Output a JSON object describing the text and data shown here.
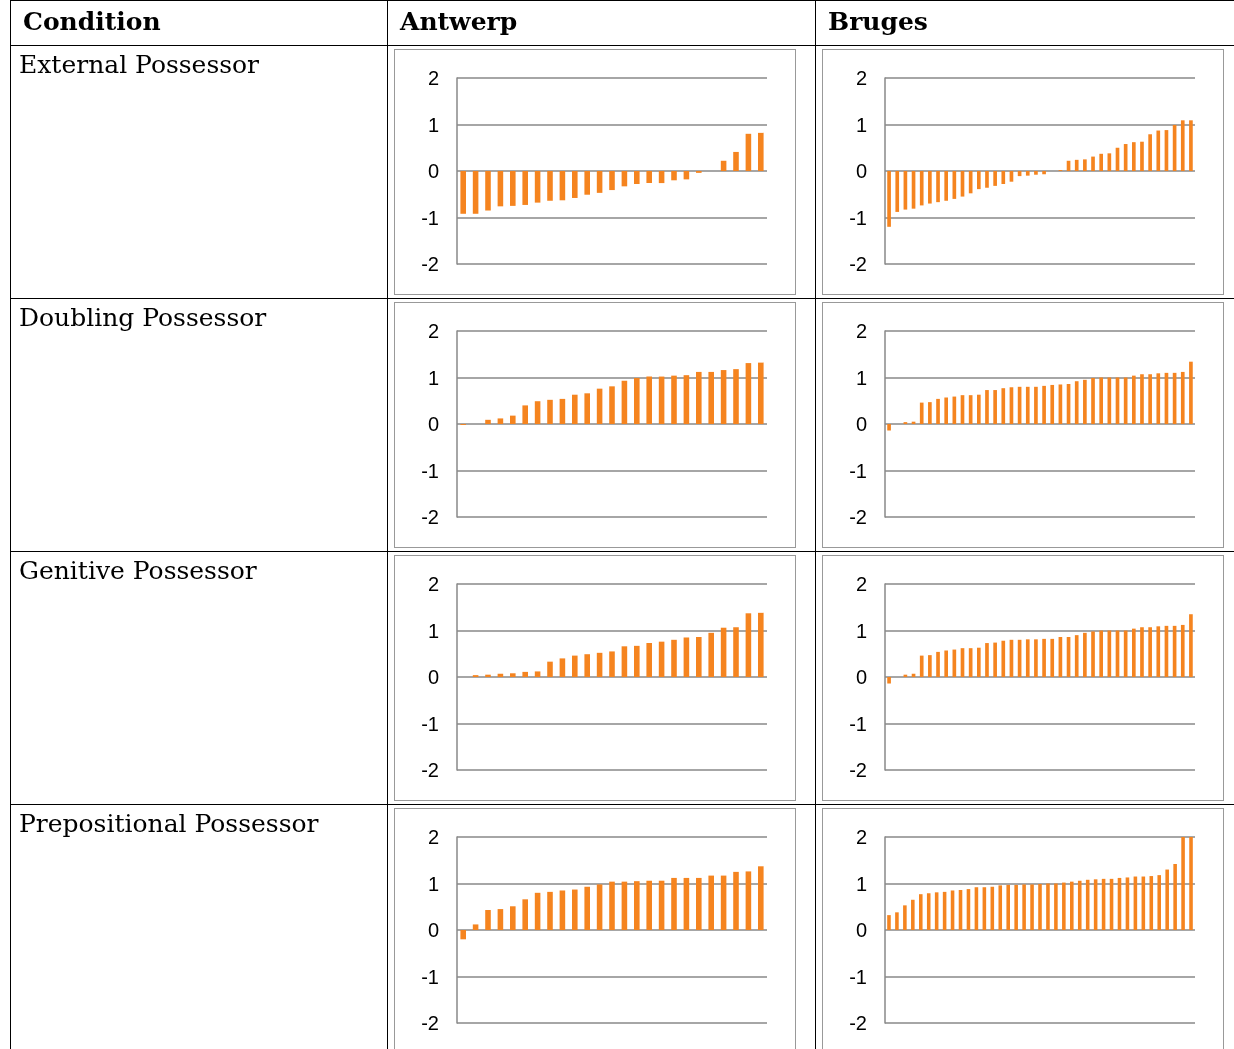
{
  "chart_data": [
    {
      "type": "bar",
      "annotations": [
        "Condition",
        "Antwerp",
        "External Possessor"
      ],
      "categories": [
        null,
        null,
        null,
        null,
        null,
        null,
        null,
        null,
        null,
        null,
        null,
        null,
        null,
        null,
        null,
        null,
        null,
        null,
        null,
        null,
        null,
        null,
        null,
        null,
        null
      ],
      "color": "#f5841f",
      "ylim": [
        -2,
        2
      ],
      "yticks": [
        -2,
        -1,
        0,
        1,
        2
      ],
      "grid": "y",
      "tick_labels": "y",
      "values": [
        -0.92,
        -0.92,
        -0.85,
        -0.76,
        -0.75,
        -0.73,
        -0.68,
        -0.64,
        -0.63,
        -0.58,
        -0.51,
        -0.47,
        -0.41,
        -0.33,
        -0.28,
        -0.26,
        -0.26,
        -0.2,
        -0.18,
        -0.04,
        0,
        0.22,
        0.41,
        0.8,
        0.82
      ]
    },
    {
      "type": "bar",
      "annotations": [
        "Bruges"
      ],
      "categories": [
        null,
        null,
        null,
        null,
        null,
        null,
        null,
        null,
        null,
        null,
        null,
        null,
        null,
        null,
        null,
        null,
        null,
        null,
        null,
        null,
        null,
        null,
        null,
        null,
        null,
        null,
        null,
        null,
        null,
        null,
        null,
        null,
        null,
        null,
        null,
        null,
        null,
        null
      ],
      "color": "#f5841f",
      "ylim": [
        -2,
        2
      ],
      "yticks": [
        -2,
        -1,
        0,
        1,
        2
      ],
      "grid": "y",
      "tick_labels": "y",
      "values": [
        -1.2,
        -0.88,
        -0.83,
        -0.81,
        -0.74,
        -0.7,
        -0.67,
        -0.64,
        -0.6,
        -0.55,
        -0.48,
        -0.39,
        -0.36,
        -0.32,
        -0.28,
        -0.23,
        -0.11,
        -0.1,
        -0.08,
        -0.07,
        0,
        0.02,
        0.22,
        0.24,
        0.25,
        0.31,
        0.37,
        0.38,
        0.5,
        0.58,
        0.62,
        0.63,
        0.79,
        0.87,
        0.88,
        0.99,
        1.09,
        1.09
      ]
    },
    {
      "type": "bar",
      "annotations": [
        "Doubling Possessor"
      ],
      "categories": [
        null,
        null,
        null,
        null,
        null,
        null,
        null,
        null,
        null,
        null,
        null,
        null,
        null,
        null,
        null,
        null,
        null,
        null,
        null,
        null,
        null,
        null,
        null,
        null,
        null
      ],
      "color": "#f5841f",
      "ylim": [
        -2,
        2
      ],
      "yticks": [
        -2,
        -1,
        0,
        1,
        2
      ],
      "grid": "y",
      "tick_labels": "y",
      "values": [
        -0.02,
        0,
        0.09,
        0.12,
        0.18,
        0.4,
        0.49,
        0.52,
        0.54,
        0.63,
        0.66,
        0.76,
        0.81,
        0.93,
        0.99,
        1.02,
        1.02,
        1.04,
        1.05,
        1.12,
        1.12,
        1.16,
        1.18,
        1.31,
        1.32
      ]
    },
    {
      "type": "bar",
      "categories": [
        null,
        null,
        null,
        null,
        null,
        null,
        null,
        null,
        null,
        null,
        null,
        null,
        null,
        null,
        null,
        null,
        null,
        null,
        null,
        null,
        null,
        null,
        null,
        null,
        null,
        null,
        null,
        null,
        null,
        null,
        null,
        null,
        null,
        null,
        null,
        null,
        null,
        null
      ],
      "color": "#f5841f",
      "ylim": [
        -2,
        2
      ],
      "yticks": [
        -2,
        -1,
        0,
        1,
        2
      ],
      "grid": "y",
      "tick_labels": "y",
      "values": [
        -0.14,
        0,
        0.04,
        0.05,
        0.46,
        0.47,
        0.54,
        0.57,
        0.59,
        0.62,
        0.62,
        0.63,
        0.73,
        0.73,
        0.77,
        0.79,
        0.8,
        0.8,
        0.8,
        0.82,
        0.84,
        0.85,
        0.86,
        0.92,
        0.95,
        0.99,
        1,
        1,
        1,
        1,
        1.04,
        1.07,
        1.07,
        1.09,
        1.1,
        1.1,
        1.12,
        1.34
      ]
    },
    {
      "type": "bar",
      "annotations": [
        "Genitive Possessor"
      ],
      "categories": [
        null,
        null,
        null,
        null,
        null,
        null,
        null,
        null,
        null,
        null,
        null,
        null,
        null,
        null,
        null,
        null,
        null,
        null,
        null,
        null,
        null,
        null,
        null,
        null,
        null
      ],
      "color": "#f5841f",
      "ylim": [
        -2,
        2
      ],
      "yticks": [
        -2,
        -1,
        0,
        1,
        2
      ],
      "grid": "y",
      "tick_labels": "y",
      "values": [
        0,
        0.04,
        0.05,
        0.07,
        0.08,
        0.11,
        0.12,
        0.33,
        0.4,
        0.46,
        0.49,
        0.52,
        0.55,
        0.66,
        0.67,
        0.73,
        0.76,
        0.8,
        0.85,
        0.86,
        0.95,
        1.06,
        1.07,
        1.37,
        1.38
      ]
    },
    {
      "type": "bar",
      "categories": [
        null,
        null,
        null,
        null,
        null,
        null,
        null,
        null,
        null,
        null,
        null,
        null,
        null,
        null,
        null,
        null,
        null,
        null,
        null,
        null,
        null,
        null,
        null,
        null,
        null,
        null,
        null,
        null,
        null,
        null,
        null,
        null,
        null,
        null,
        null,
        null,
        null,
        null
      ],
      "color": "#f5841f",
      "ylim": [
        -2,
        2
      ],
      "yticks": [
        -2,
        -1,
        0,
        1,
        2
      ],
      "grid": "y",
      "tick_labels": "y",
      "values": [
        -0.14,
        0,
        0.05,
        0.07,
        0.46,
        0.47,
        0.54,
        0.57,
        0.59,
        0.62,
        0.62,
        0.63,
        0.73,
        0.74,
        0.78,
        0.8,
        0.8,
        0.81,
        0.81,
        0.82,
        0.82,
        0.86,
        0.86,
        0.9,
        0.95,
        0.98,
        1,
        1,
        1,
        1,
        1.04,
        1.07,
        1.07,
        1.09,
        1.1,
        1.1,
        1.12,
        1.35
      ]
    },
    {
      "type": "bar",
      "annotations": [
        "Prepositional Possessor"
      ],
      "categories": [
        null,
        null,
        null,
        null,
        null,
        null,
        null,
        null,
        null,
        null,
        null,
        null,
        null,
        null,
        null,
        null,
        null,
        null,
        null,
        null,
        null,
        null,
        null,
        null,
        null
      ],
      "color": "#f5841f",
      "ylim": [
        -2,
        2
      ],
      "yticks": [
        -2,
        -1,
        0,
        1,
        2
      ],
      "grid": "y",
      "tick_labels": "y",
      "values": [
        -0.2,
        0.12,
        0.43,
        0.45,
        0.51,
        0.66,
        0.8,
        0.82,
        0.85,
        0.87,
        0.93,
        0.98,
        1.04,
        1.04,
        1.05,
        1.06,
        1.06,
        1.12,
        1.12,
        1.12,
        1.17,
        1.17,
        1.25,
        1.26,
        1.37
      ]
    },
    {
      "type": "bar",
      "categories": [
        null,
        null,
        null,
        null,
        null,
        null,
        null,
        null,
        null,
        null,
        null,
        null,
        null,
        null,
        null,
        null,
        null,
        null,
        null,
        null,
        null,
        null,
        null,
        null,
        null,
        null,
        null,
        null,
        null,
        null,
        null,
        null,
        null,
        null,
        null,
        null,
        null,
        null,
        null
      ],
      "color": "#f5841f",
      "ylim": [
        -2,
        2
      ],
      "yticks": [
        -2,
        -1,
        0,
        1,
        2
      ],
      "grid": "y",
      "tick_labels": "y",
      "values": [
        0.32,
        0.38,
        0.53,
        0.65,
        0.77,
        0.79,
        0.81,
        0.82,
        0.85,
        0.86,
        0.88,
        0.92,
        0.92,
        0.93,
        0.96,
        0.97,
        0.97,
        0.98,
        0.98,
        0.99,
        1,
        1,
        1.02,
        1.04,
        1.06,
        1.08,
        1.09,
        1.1,
        1.1,
        1.12,
        1.13,
        1.15,
        1.15,
        1.16,
        1.18,
        1.3,
        1.42,
        2,
        2
      ]
    }
  ]
}
